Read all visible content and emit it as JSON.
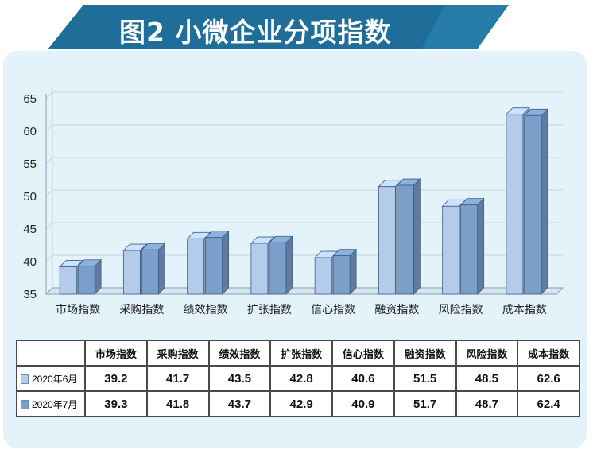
{
  "title": "图2 小微企业分项指数",
  "chart_data": {
    "type": "bar",
    "categories": [
      "市场指数",
      "采购指数",
      "绩效指数",
      "扩张指数",
      "信心指数",
      "融资指数",
      "风险指数",
      "成本指数"
    ],
    "series": [
      {
        "name": "2020年6月",
        "values": [
          39.2,
          41.7,
          43.5,
          42.8,
          40.6,
          51.5,
          48.5,
          62.6
        ],
        "color": "#b4cbe9"
      },
      {
        "name": "2020年7月",
        "values": [
          39.3,
          41.8,
          43.7,
          42.9,
          40.9,
          51.7,
          48.7,
          62.4
        ],
        "color": "#7a9fca"
      }
    ],
    "ylim": [
      35,
      65
    ],
    "yticks": [
      "35",
      "40",
      "45",
      "50",
      "55",
      "60",
      "65"
    ],
    "grid": true
  },
  "table": {
    "headers": [
      "市场指数",
      "采购指数",
      "绩效指数",
      "扩张指数",
      "信心指数",
      "融资指数",
      "风险指数",
      "成本指数"
    ],
    "rows": [
      {
        "label": "2020年6月",
        "values": [
          "39.2",
          "41.7",
          "43.5",
          "42.8",
          "40.6",
          "51.5",
          "48.5",
          "62.6"
        ]
      },
      {
        "label": "2020年7月",
        "values": [
          "39.3",
          "41.8",
          "43.7",
          "42.9",
          "40.9",
          "51.7",
          "48.7",
          "62.4"
        ]
      }
    ]
  }
}
